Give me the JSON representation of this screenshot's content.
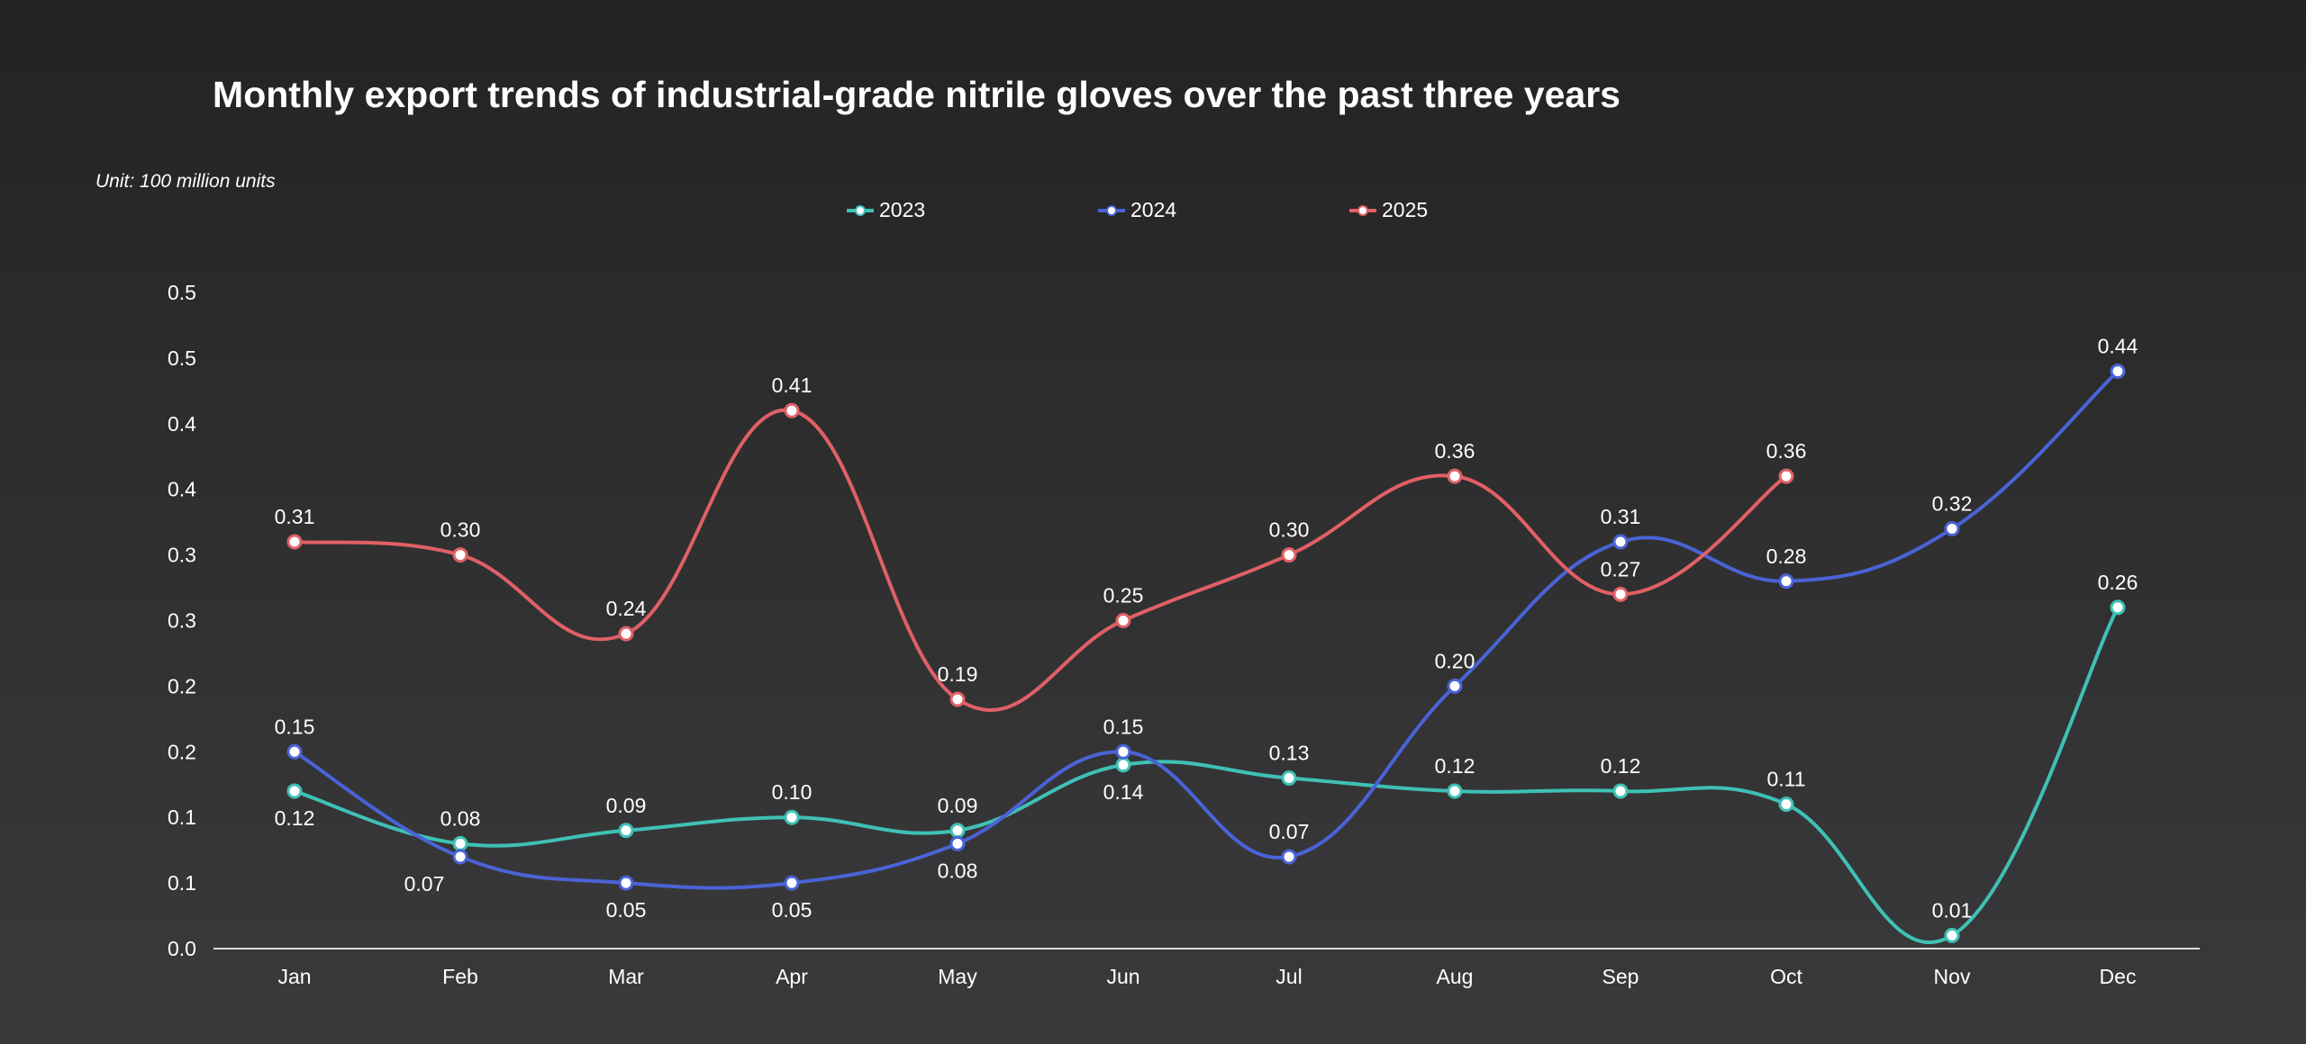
{
  "chart_data": {
    "type": "line",
    "title": "Monthly export trends of industrial-grade nitrile gloves over the past three years",
    "unit_label": "Unit: 100 million units",
    "xlabel": "",
    "ylabel": "",
    "categories": [
      "Jan",
      "Feb",
      "Mar",
      "Apr",
      "May",
      "Jun",
      "Jul",
      "Aug",
      "Sep",
      "Oct",
      "Nov",
      "Dec"
    ],
    "ylim": [
      0,
      0.5
    ],
    "y_ticks": [
      0.0,
      0.05,
      0.1,
      0.15,
      0.2,
      0.25,
      0.3,
      0.35,
      0.4,
      0.45,
      0.5
    ],
    "y_tick_labels": [
      "0.0",
      "0.1",
      "0.1",
      "0.2",
      "0.2",
      "0.3",
      "0.3",
      "0.4",
      "0.4",
      "0.5",
      "0.5"
    ],
    "grid": false,
    "smooth": true,
    "legend_position": "top",
    "series": [
      {
        "name": "2023",
        "color": "#3fc1b5",
        "values": [
          0.12,
          0.08,
          0.09,
          0.1,
          0.09,
          0.14,
          0.13,
          0.12,
          0.12,
          0.11,
          0.01,
          0.26
        ]
      },
      {
        "name": "2024",
        "color": "#4a63d6",
        "values": [
          0.15,
          0.07,
          0.05,
          0.05,
          0.08,
          0.15,
          0.07,
          0.2,
          0.31,
          0.28,
          0.32,
          0.44
        ]
      },
      {
        "name": "2025",
        "color": "#e06066",
        "values": [
          0.31,
          0.3,
          0.24,
          0.41,
          0.19,
          0.25,
          0.3,
          0.36,
          0.27,
          0.36,
          null,
          null
        ]
      }
    ]
  }
}
